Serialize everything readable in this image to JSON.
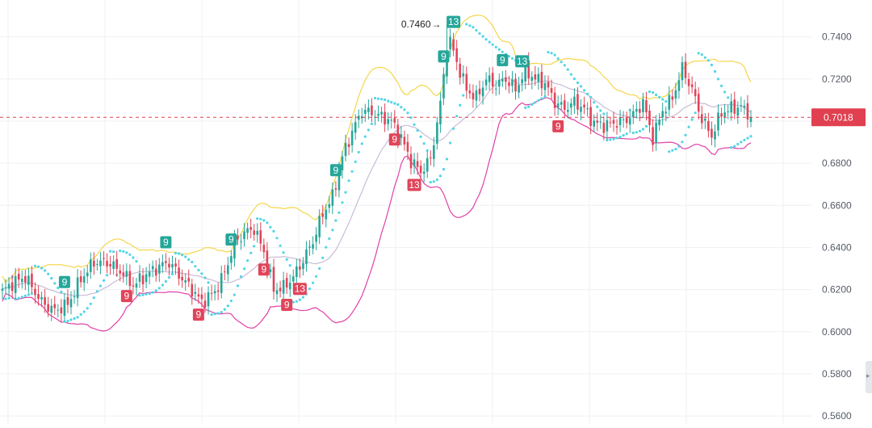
{
  "chart_data": {
    "type": "candlestick",
    "indicators": [
      "Bollinger Bands",
      "Parabolic SAR",
      "TD Sequential"
    ],
    "y_axis": {
      "ticks": [
        "0.7400",
        "0.7200",
        "0.7000",
        "0.6800",
        "0.6600",
        "0.6400",
        "0.6200",
        "0.6000",
        "0.5800",
        "0.5600"
      ],
      "range": [
        0.5562,
        0.7575
      ],
      "position": "right"
    },
    "grid": true,
    "current_price": "0.7018",
    "high_annotation": "0.7460",
    "colors": {
      "up": "#26a69a",
      "down": "#e0455a",
      "bb_upper": "#f5d64a",
      "bb_middle": "#c9bcd6",
      "bb_lower": "#e040a8",
      "sar": "#4fd5e6",
      "price_line": "#e04050",
      "grid": "#eef0f3"
    },
    "td_labels": [
      {
        "text": "9",
        "bar": 19,
        "kind": "buy"
      },
      {
        "text": "9",
        "bar": 38,
        "kind": "sell"
      },
      {
        "text": "9",
        "bar": 50,
        "kind": "buy"
      },
      {
        "text": "9",
        "bar": 60,
        "kind": "sell"
      },
      {
        "text": "9",
        "bar": 70,
        "kind": "buy"
      },
      {
        "text": "9",
        "bar": 80,
        "kind": "sell"
      },
      {
        "text": "9",
        "bar": 87,
        "kind": "sell"
      },
      {
        "text": "13",
        "bar": 91,
        "kind": "sell"
      },
      {
        "text": "9",
        "bar": 102,
        "kind": "buy"
      },
      {
        "text": "9",
        "bar": 120,
        "kind": "sell"
      },
      {
        "text": "13",
        "bar": 126,
        "kind": "sell"
      },
      {
        "text": "9",
        "bar": 135,
        "kind": "buy"
      },
      {
        "text": "13",
        "bar": 138,
        "kind": "buy"
      },
      {
        "text": "9",
        "bar": 153,
        "kind": "buy"
      },
      {
        "text": "13",
        "bar": 159,
        "kind": "buy"
      },
      {
        "text": "9",
        "bar": 170,
        "kind": "sell"
      }
    ],
    "anchors": [
      [
        0,
        0.619
      ],
      [
        3,
        0.623
      ],
      [
        7,
        0.626
      ],
      [
        12,
        0.614
      ],
      [
        16,
        0.61
      ],
      [
        20,
        0.613
      ],
      [
        24,
        0.625
      ],
      [
        28,
        0.633
      ],
      [
        32,
        0.633
      ],
      [
        36,
        0.629
      ],
      [
        40,
        0.622
      ],
      [
        44,
        0.627
      ],
      [
        48,
        0.631
      ],
      [
        51,
        0.633
      ],
      [
        54,
        0.627
      ],
      [
        58,
        0.62
      ],
      [
        61,
        0.614
      ],
      [
        65,
        0.619
      ],
      [
        68,
        0.628
      ],
      [
        71,
        0.642
      ],
      [
        74,
        0.647
      ],
      [
        77,
        0.649
      ],
      [
        80,
        0.638
      ],
      [
        83,
        0.62
      ],
      [
        86,
        0.621
      ],
      [
        89,
        0.626
      ],
      [
        92,
        0.634
      ],
      [
        95,
        0.643
      ],
      [
        98,
        0.656
      ],
      [
        101,
        0.664
      ],
      [
        104,
        0.683
      ],
      [
        107,
        0.695
      ],
      [
        110,
        0.705
      ],
      [
        113,
        0.704
      ],
      [
        116,
        0.702
      ],
      [
        119,
        0.7
      ],
      [
        122,
        0.692
      ],
      [
        125,
        0.681
      ],
      [
        128,
        0.676
      ],
      [
        131,
        0.682
      ],
      [
        134,
        0.708
      ],
      [
        136,
        0.736
      ],
      [
        137,
        0.738
      ],
      [
        139,
        0.728
      ],
      [
        142,
        0.715
      ],
      [
        145,
        0.711
      ],
      [
        148,
        0.72
      ],
      [
        151,
        0.717
      ],
      [
        154,
        0.72
      ],
      [
        157,
        0.715
      ],
      [
        160,
        0.724
      ],
      [
        163,
        0.72
      ],
      [
        166,
        0.718
      ],
      [
        169,
        0.709
      ],
      [
        172,
        0.706
      ],
      [
        175,
        0.709
      ],
      [
        178,
        0.706
      ],
      [
        181,
        0.699
      ],
      [
        184,
        0.698
      ],
      [
        187,
        0.699
      ],
      [
        190,
        0.7
      ],
      [
        193,
        0.703
      ],
      [
        196,
        0.709
      ],
      [
        199,
        0.692
      ],
      [
        202,
        0.705
      ],
      [
        205,
        0.711
      ],
      [
        208,
        0.725
      ],
      [
        211,
        0.715
      ],
      [
        214,
        0.701
      ],
      [
        217,
        0.693
      ],
      [
        220,
        0.704
      ],
      [
        223,
        0.706
      ],
      [
        226,
        0.707
      ],
      [
        229,
        0.7018
      ]
    ],
    "bars": 230,
    "high_bar": 136
  }
}
